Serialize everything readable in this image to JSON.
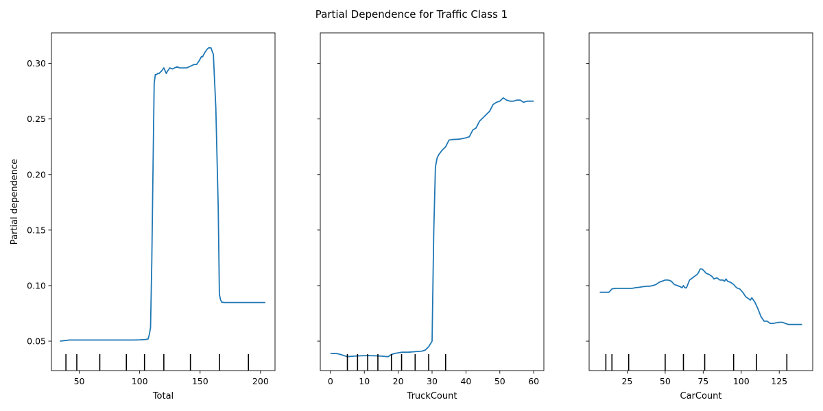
{
  "figure": {
    "title": "Partial Dependence for Traffic Class 1",
    "line_color": "#1f77b4",
    "rug_color": "#000000"
  },
  "chart_data": [
    {
      "type": "line",
      "xlabel": "Total",
      "ylabel": "Partial dependence",
      "xlim": [
        27,
        212
      ],
      "ylim": [
        0.0235,
        0.3275
      ],
      "xticks": [
        50,
        100,
        150,
        200
      ],
      "yticks": [
        0.05,
        0.1,
        0.15,
        0.2,
        0.25,
        0.3
      ],
      "ytick_labels": [
        "0.05",
        "0.10",
        "0.15",
        "0.20",
        "0.25",
        "0.30"
      ],
      "show_ytick_labels": true,
      "rug_deciles": [
        39,
        48,
        67,
        89,
        104,
        120,
        142,
        166,
        190
      ],
      "x": [
        34,
        38,
        42,
        50,
        60,
        70,
        80,
        90,
        95,
        100,
        105,
        107,
        108,
        109,
        110,
        111,
        112,
        113,
        114,
        115,
        116,
        118,
        120,
        122,
        123,
        125,
        127,
        129,
        131,
        133,
        135,
        137,
        139,
        141,
        143,
        145,
        147,
        149,
        151,
        152,
        154,
        156,
        157,
        159,
        161,
        163,
        165,
        166,
        167,
        168,
        169,
        170,
        172,
        175,
        180,
        190,
        200,
        204
      ],
      "y": [
        0.05,
        0.0505,
        0.051,
        0.051,
        0.051,
        0.051,
        0.051,
        0.051,
        0.051,
        0.0512,
        0.0515,
        0.052,
        0.056,
        0.062,
        0.12,
        0.2,
        0.282,
        0.29,
        0.29,
        0.291,
        0.291,
        0.293,
        0.296,
        0.291,
        0.293,
        0.296,
        0.295,
        0.296,
        0.297,
        0.296,
        0.296,
        0.296,
        0.296,
        0.297,
        0.298,
        0.299,
        0.299,
        0.302,
        0.306,
        0.306,
        0.31,
        0.313,
        0.314,
        0.314,
        0.308,
        0.26,
        0.17,
        0.092,
        0.087,
        0.085,
        0.085,
        0.0848,
        0.0848,
        0.0848,
        0.0848,
        0.0848,
        0.0848,
        0.0848
      ]
    },
    {
      "type": "line",
      "xlabel": "TruckCount",
      "ylabel": "",
      "xlim": [
        -3,
        63
      ],
      "ylim": [
        0.0235,
        0.3275
      ],
      "xticks": [
        0,
        10,
        20,
        30,
        40,
        50,
        60
      ],
      "yticks": [
        0.05,
        0.1,
        0.15,
        0.2,
        0.25,
        0.3
      ],
      "ytick_labels": [
        "0.05",
        "0.10",
        "0.15",
        "0.20",
        "0.25",
        "0.30"
      ],
      "show_ytick_labels": false,
      "rug_deciles": [
        5,
        8,
        11,
        14,
        18,
        21,
        25,
        29,
        34
      ],
      "x": [
        0,
        2,
        3,
        4,
        5,
        7,
        9,
        11,
        13,
        15,
        17,
        18,
        19,
        20,
        21,
        23,
        25,
        27,
        28,
        29,
        30,
        30.5,
        31,
        31.5,
        32,
        33,
        34,
        35,
        36,
        38,
        40,
        41,
        42,
        43,
        44,
        45,
        46,
        47,
        48,
        49,
        50,
        51,
        52,
        53,
        54,
        55,
        56,
        57,
        58,
        59,
        60
      ],
      "y": [
        0.039,
        0.0388,
        0.038,
        0.037,
        0.036,
        0.0365,
        0.0368,
        0.037,
        0.0368,
        0.0365,
        0.036,
        0.038,
        0.039,
        0.0395,
        0.04,
        0.04,
        0.0405,
        0.041,
        0.042,
        0.045,
        0.05,
        0.15,
        0.207,
        0.215,
        0.218,
        0.222,
        0.225,
        0.231,
        0.2315,
        0.2318,
        0.233,
        0.234,
        0.24,
        0.242,
        0.248,
        0.251,
        0.254,
        0.257,
        0.263,
        0.265,
        0.266,
        0.269,
        0.267,
        0.266,
        0.266,
        0.267,
        0.267,
        0.265,
        0.266,
        0.266,
        0.266
      ]
    },
    {
      "type": "line",
      "xlabel": "CarCount",
      "ylabel": "",
      "xlim": [
        0,
        147
      ],
      "ylim": [
        0.0235,
        0.3275
      ],
      "xticks": [
        25,
        50,
        75,
        100,
        125
      ],
      "yticks": [
        0.05,
        0.1,
        0.15,
        0.2,
        0.25,
        0.3
      ],
      "ytick_labels": [
        "0.05",
        "0.10",
        "0.15",
        "0.20",
        "0.25",
        "0.30"
      ],
      "show_ytick_labels": false,
      "rug_deciles": [
        11,
        15,
        26,
        50,
        62,
        76,
        95,
        110,
        130
      ],
      "x": [
        7,
        10,
        13,
        15,
        17,
        20,
        25,
        28,
        30,
        33,
        35,
        38,
        40,
        42,
        44,
        46,
        48,
        50,
        52,
        54,
        56,
        58,
        60,
        61,
        62,
        63,
        64,
        66,
        68,
        70,
        71,
        72,
        73,
        74,
        75,
        77,
        79,
        81,
        82,
        84,
        86,
        88,
        89,
        90,
        91,
        93,
        95,
        97,
        99,
        101,
        103,
        105,
        106,
        107,
        109,
        111,
        113,
        115,
        117,
        119,
        121,
        123,
        125,
        127,
        129,
        131,
        135,
        140
      ],
      "y": [
        0.094,
        0.094,
        0.094,
        0.097,
        0.0975,
        0.0975,
        0.0975,
        0.0975,
        0.098,
        0.0985,
        0.099,
        0.0995,
        0.0995,
        0.1,
        0.101,
        0.103,
        0.104,
        0.105,
        0.105,
        0.104,
        0.101,
        0.1,
        0.099,
        0.098,
        0.1,
        0.098,
        0.098,
        0.105,
        0.107,
        0.109,
        0.11,
        0.112,
        0.115,
        0.115,
        0.114,
        0.111,
        0.11,
        0.108,
        0.106,
        0.107,
        0.105,
        0.105,
        0.104,
        0.106,
        0.104,
        0.103,
        0.101,
        0.098,
        0.097,
        0.094,
        0.09,
        0.088,
        0.087,
        0.089,
        0.085,
        0.079,
        0.072,
        0.068,
        0.068,
        0.066,
        0.066,
        0.0665,
        0.067,
        0.067,
        0.066,
        0.065,
        0.065,
        0.065
      ]
    }
  ]
}
